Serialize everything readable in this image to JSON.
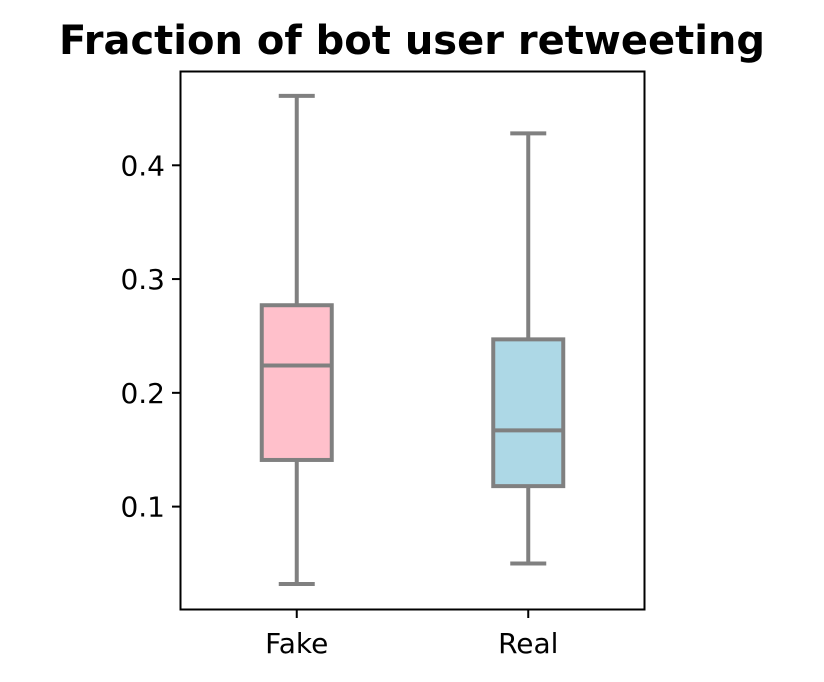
{
  "chart_data": {
    "type": "box",
    "title": "Fraction of bot user retweeting",
    "xlabel": "",
    "ylabel": "",
    "categories": [
      "Fake",
      "Real"
    ],
    "boxes": [
      {
        "category": "Fake",
        "whisker_low": 0.032,
        "q1": 0.141,
        "median": 0.224,
        "q3": 0.277,
        "whisker_high": 0.461,
        "color": "#ffc0cb"
      },
      {
        "category": "Real",
        "whisker_low": 0.05,
        "q1": 0.118,
        "median": 0.167,
        "q3": 0.247,
        "whisker_high": 0.428,
        "color": "#add8e6"
      }
    ],
    "ylim": [
      0.01,
      0.482
    ],
    "yticks": [
      0.1,
      0.2,
      0.3,
      0.4
    ],
    "ytick_labels": [
      "0.1",
      "0.2",
      "0.3",
      "0.4"
    ],
    "grid": false,
    "line_color": "#808080"
  }
}
